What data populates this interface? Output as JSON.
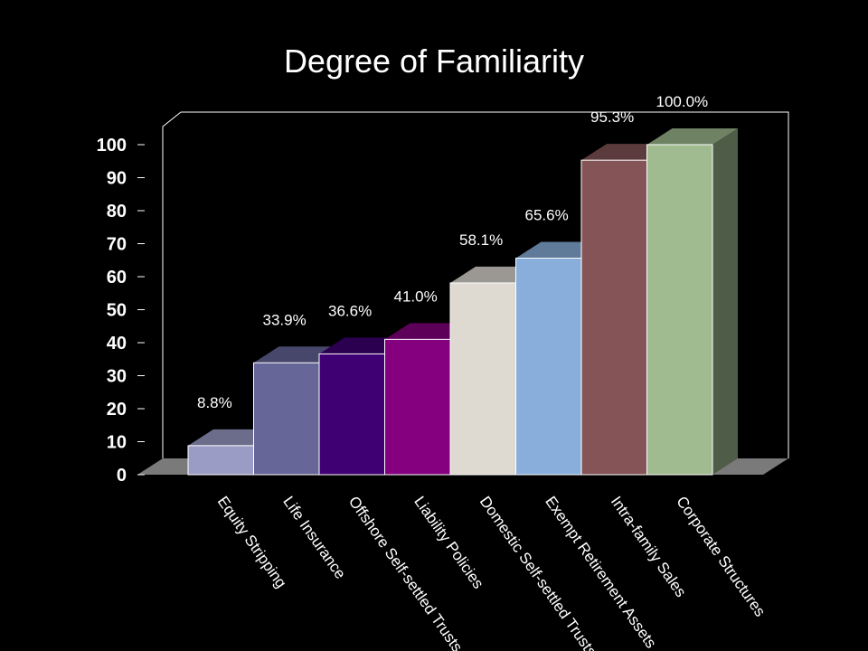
{
  "chart_data": {
    "type": "bar",
    "title": "Degree of Familiarity",
    "categories": [
      "Equity Stripping",
      "Life Insurance",
      "Offshore Self-settled Trusts",
      "Liability Policies",
      "Domestic Self-settled Trusts",
      "Exempt Retirement Assets",
      "Intra-family Sales",
      "Corporate Structures"
    ],
    "values": [
      8.8,
      33.9,
      36.6,
      41.0,
      58.1,
      65.6,
      95.3,
      100.0
    ],
    "value_labels": [
      "8.8%",
      "33.9%",
      "36.6%",
      "41.0%",
      "58.1%",
      "65.6%",
      "95.3%",
      "100.0%"
    ],
    "yticks": [
      "0",
      "10",
      "20",
      "30",
      "40",
      "50",
      "60",
      "70",
      "80",
      "90",
      "100"
    ],
    "ylim": [
      0,
      100
    ],
    "xlabel": "",
    "ylabel": "",
    "grid": false,
    "legend": "none",
    "colors": [
      "#9a9cc6",
      "#666699",
      "#3f0074",
      "#84007f",
      "#dedad2",
      "#89aedb",
      "#845456",
      "#9fbb8f"
    ],
    "top_colors": [
      "#6c6d8a",
      "#47476b",
      "#2c0051",
      "#5c0059",
      "#9b9893",
      "#607a99",
      "#5c3b3c",
      "#6f8364"
    ],
    "side_colors": [
      "#4d4e63",
      "#33334d",
      "#20003a",
      "#420040",
      "#6f6d69",
      "#44576e",
      "#422a2b",
      "#4f5d48"
    ]
  }
}
